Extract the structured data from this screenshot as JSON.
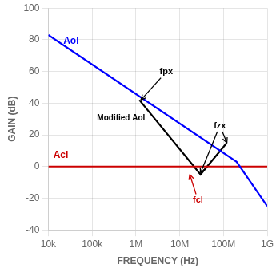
{
  "chart_data": {
    "type": "line",
    "xlabel": "FREQUENCY (Hz)",
    "ylabel": "GAIN (dB)",
    "log": "x",
    "grid": true,
    "xlim": [
      10000,
      1000000000
    ],
    "xticks": [
      {
        "value": 10000,
        "label": "10k"
      },
      {
        "value": 100000,
        "label": "100k"
      },
      {
        "value": 1000000,
        "label": "1M"
      },
      {
        "value": 10000000,
        "label": "10M"
      },
      {
        "value": 100000000,
        "label": "100M"
      },
      {
        "value": 1000000000,
        "label": "1G"
      }
    ],
    "ylim": [
      -40,
      100
    ],
    "yticks": [
      -40,
      -20,
      0,
      20,
      40,
      60,
      80,
      100
    ],
    "series": [
      {
        "name": "AoI",
        "color": "#0000ff",
        "x": [
          10000,
          200000000,
          1000000000
        ],
        "values": [
          83,
          3,
          -25
        ],
        "label_xy": [
          22000,
          76
        ]
      },
      {
        "name": "AcI",
        "type": "hline",
        "color": "#cc0000",
        "values": [
          0
        ],
        "label_xy": [
          13000,
          4
        ]
      },
      {
        "name": "Modified AoI",
        "color": "#000000",
        "x": [
          1200000,
          30000000,
          120000000
        ],
        "values": [
          42,
          -5,
          15
        ],
        "label_xy": [
          130000,
          28
        ]
      }
    ],
    "annotations": [
      {
        "text": "fpx",
        "x": 3500000,
        "y": 57,
        "arrows": [
          [
            1300000,
            42
          ]
        ]
      },
      {
        "text": "fzx",
        "x": 60000000,
        "y": 23,
        "arrows": [
          [
            30000000,
            -4
          ],
          [
            120000000,
            15
          ]
        ]
      },
      {
        "text": "fcl",
        "color": "#cc0000",
        "x": 20000000,
        "y": -24,
        "arrows": [
          [
            17000000,
            -5
          ]
        ]
      }
    ]
  }
}
